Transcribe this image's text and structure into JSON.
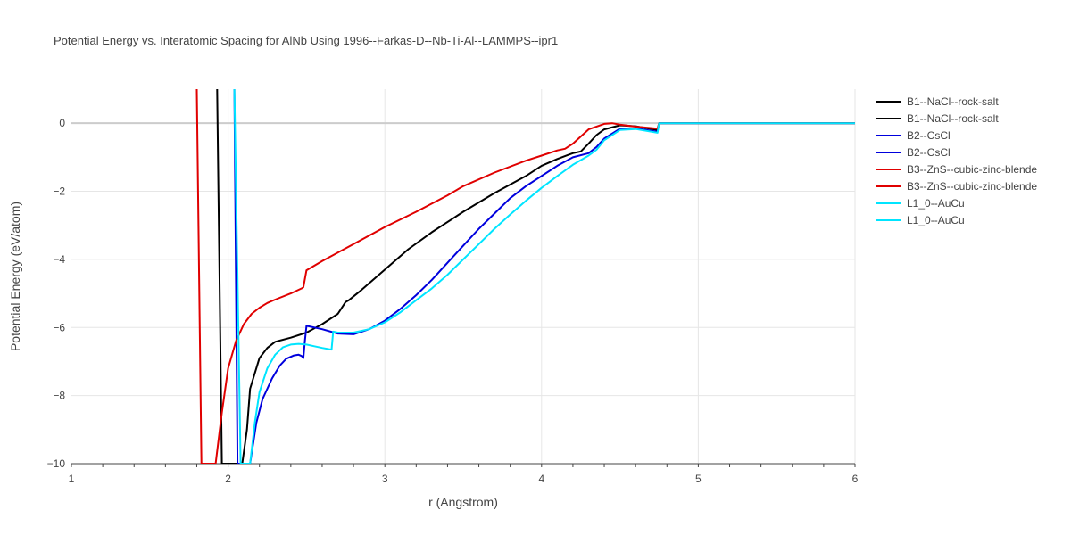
{
  "chart_data": {
    "type": "line",
    "title": "Potential Energy vs. Interatomic Spacing for AlNb Using 1996--Farkas-D--Nb-Ti-Al--LAMMPS--ipr1",
    "xlabel": "r (Angstrom)",
    "ylabel": "Potential Energy (eV/atom)",
    "xlim": [
      1,
      6
    ],
    "ylim": [
      -10,
      1
    ],
    "xticks": [
      1,
      2,
      3,
      4,
      5,
      6
    ],
    "yticks": [
      0,
      -2,
      -4,
      -6,
      -8,
      -10
    ],
    "grid": true,
    "legend_position": "right",
    "series": [
      {
        "name": "B1--NaCl--rock-salt",
        "color": "#000000",
        "x": [
          1.93,
          1.96,
          2.09,
          2.12,
          2.14,
          2.2,
          2.25,
          2.3,
          2.4,
          2.5,
          2.6,
          2.7,
          2.75,
          2.77,
          2.85,
          3.0,
          3.15,
          3.3,
          3.5,
          3.7,
          3.9,
          4.0,
          4.1,
          4.2,
          4.25,
          4.3,
          4.35,
          4.4,
          4.5,
          4.6,
          4.74,
          4.75,
          4.8,
          5.0,
          5.5,
          6.0
        ],
        "y": [
          1.0,
          -10.0,
          -10.0,
          -9.0,
          -7.8,
          -6.9,
          -6.6,
          -6.42,
          -6.3,
          -6.15,
          -5.9,
          -5.6,
          -5.25,
          -5.2,
          -4.9,
          -4.3,
          -3.7,
          -3.2,
          -2.6,
          -2.05,
          -1.55,
          -1.25,
          -1.05,
          -0.88,
          -0.83,
          -0.6,
          -0.35,
          -0.18,
          -0.06,
          -0.09,
          -0.2,
          0.0,
          0.0,
          0.0,
          0.0,
          0.0
        ]
      },
      {
        "name": "B1--NaCl--rock-salt",
        "color": "#000000",
        "x": [],
        "y": []
      },
      {
        "name": "B2--CsCl",
        "color": "#0000dd",
        "x": [
          2.04,
          2.06,
          2.14,
          2.18,
          2.22,
          2.28,
          2.33,
          2.37,
          2.42,
          2.45,
          2.47,
          2.48,
          2.49,
          2.5,
          2.6,
          2.7,
          2.8,
          2.9,
          3.0,
          3.1,
          3.2,
          3.3,
          3.4,
          3.5,
          3.6,
          3.7,
          3.8,
          3.9,
          4.0,
          4.1,
          4.2,
          4.3,
          4.35,
          4.4,
          4.5,
          4.6,
          4.74,
          4.75,
          4.8,
          5.0,
          5.5,
          6.0
        ],
        "y": [
          1.0,
          -10.0,
          -10.0,
          -8.8,
          -8.1,
          -7.5,
          -7.12,
          -6.92,
          -6.82,
          -6.8,
          -6.84,
          -6.9,
          -6.4,
          -5.95,
          -6.05,
          -6.18,
          -6.2,
          -6.05,
          -5.8,
          -5.45,
          -5.05,
          -4.6,
          -4.1,
          -3.6,
          -3.1,
          -2.65,
          -2.2,
          -1.85,
          -1.55,
          -1.25,
          -1.0,
          -0.88,
          -0.7,
          -0.45,
          -0.16,
          -0.15,
          -0.25,
          0.0,
          0.0,
          0.0,
          0.0,
          0.0
        ]
      },
      {
        "name": "B2--CsCl",
        "color": "#0000dd",
        "x": [],
        "y": []
      },
      {
        "name": "B3--ZnS--cubic-zinc-blende",
        "color": "#e00000",
        "x": [
          1.8,
          1.83,
          1.92,
          1.96,
          2.0,
          2.05,
          2.1,
          2.15,
          2.2,
          2.25,
          2.3,
          2.4,
          2.47,
          2.48,
          2.5,
          2.6,
          2.8,
          3.0,
          3.2,
          3.4,
          3.5,
          3.7,
          3.9,
          4.0,
          4.1,
          4.15,
          4.2,
          4.3,
          4.4,
          4.45,
          4.5,
          4.6,
          4.74,
          4.75,
          4.8,
          5.0,
          5.5,
          6.0
        ],
        "y": [
          1.0,
          -10.0,
          -10.0,
          -8.5,
          -7.2,
          -6.4,
          -5.9,
          -5.6,
          -5.42,
          -5.28,
          -5.18,
          -5.0,
          -4.85,
          -4.82,
          -4.32,
          -4.05,
          -3.55,
          -3.05,
          -2.6,
          -2.12,
          -1.85,
          -1.45,
          -1.1,
          -0.95,
          -0.8,
          -0.75,
          -0.6,
          -0.18,
          -0.02,
          0.0,
          -0.04,
          -0.1,
          -0.16,
          0.0,
          0.0,
          0.0,
          0.0,
          0.0
        ]
      },
      {
        "name": "B3--ZnS--cubic-zinc-blende",
        "color": "#e00000",
        "x": [],
        "y": []
      },
      {
        "name": "L1_0--AuCu",
        "color": "#00e5ff",
        "x": [
          2.04,
          2.08,
          2.14,
          2.17,
          2.2,
          2.25,
          2.3,
          2.35,
          2.4,
          2.45,
          2.5,
          2.55,
          2.6,
          2.66,
          2.67,
          2.7,
          2.8,
          2.9,
          3.0,
          3.1,
          3.2,
          3.3,
          3.4,
          3.5,
          3.6,
          3.7,
          3.8,
          3.9,
          4.0,
          4.1,
          4.2,
          4.3,
          4.35,
          4.4,
          4.5,
          4.6,
          4.74,
          4.75,
          4.8,
          5.0,
          5.5,
          6.0
        ],
        "y": [
          1.0,
          -10.0,
          -10.0,
          -8.8,
          -7.9,
          -7.2,
          -6.8,
          -6.58,
          -6.5,
          -6.48,
          -6.5,
          -6.55,
          -6.6,
          -6.65,
          -6.12,
          -6.15,
          -6.15,
          -6.05,
          -5.85,
          -5.55,
          -5.2,
          -4.85,
          -4.45,
          -4.0,
          -3.55,
          -3.1,
          -2.68,
          -2.28,
          -1.9,
          -1.55,
          -1.22,
          -0.95,
          -0.78,
          -0.5,
          -0.2,
          -0.17,
          -0.28,
          0.0,
          0.0,
          0.0,
          0.0,
          0.0
        ]
      },
      {
        "name": "L1_0--AuCu",
        "color": "#00e5ff",
        "x": [],
        "y": []
      }
    ]
  }
}
